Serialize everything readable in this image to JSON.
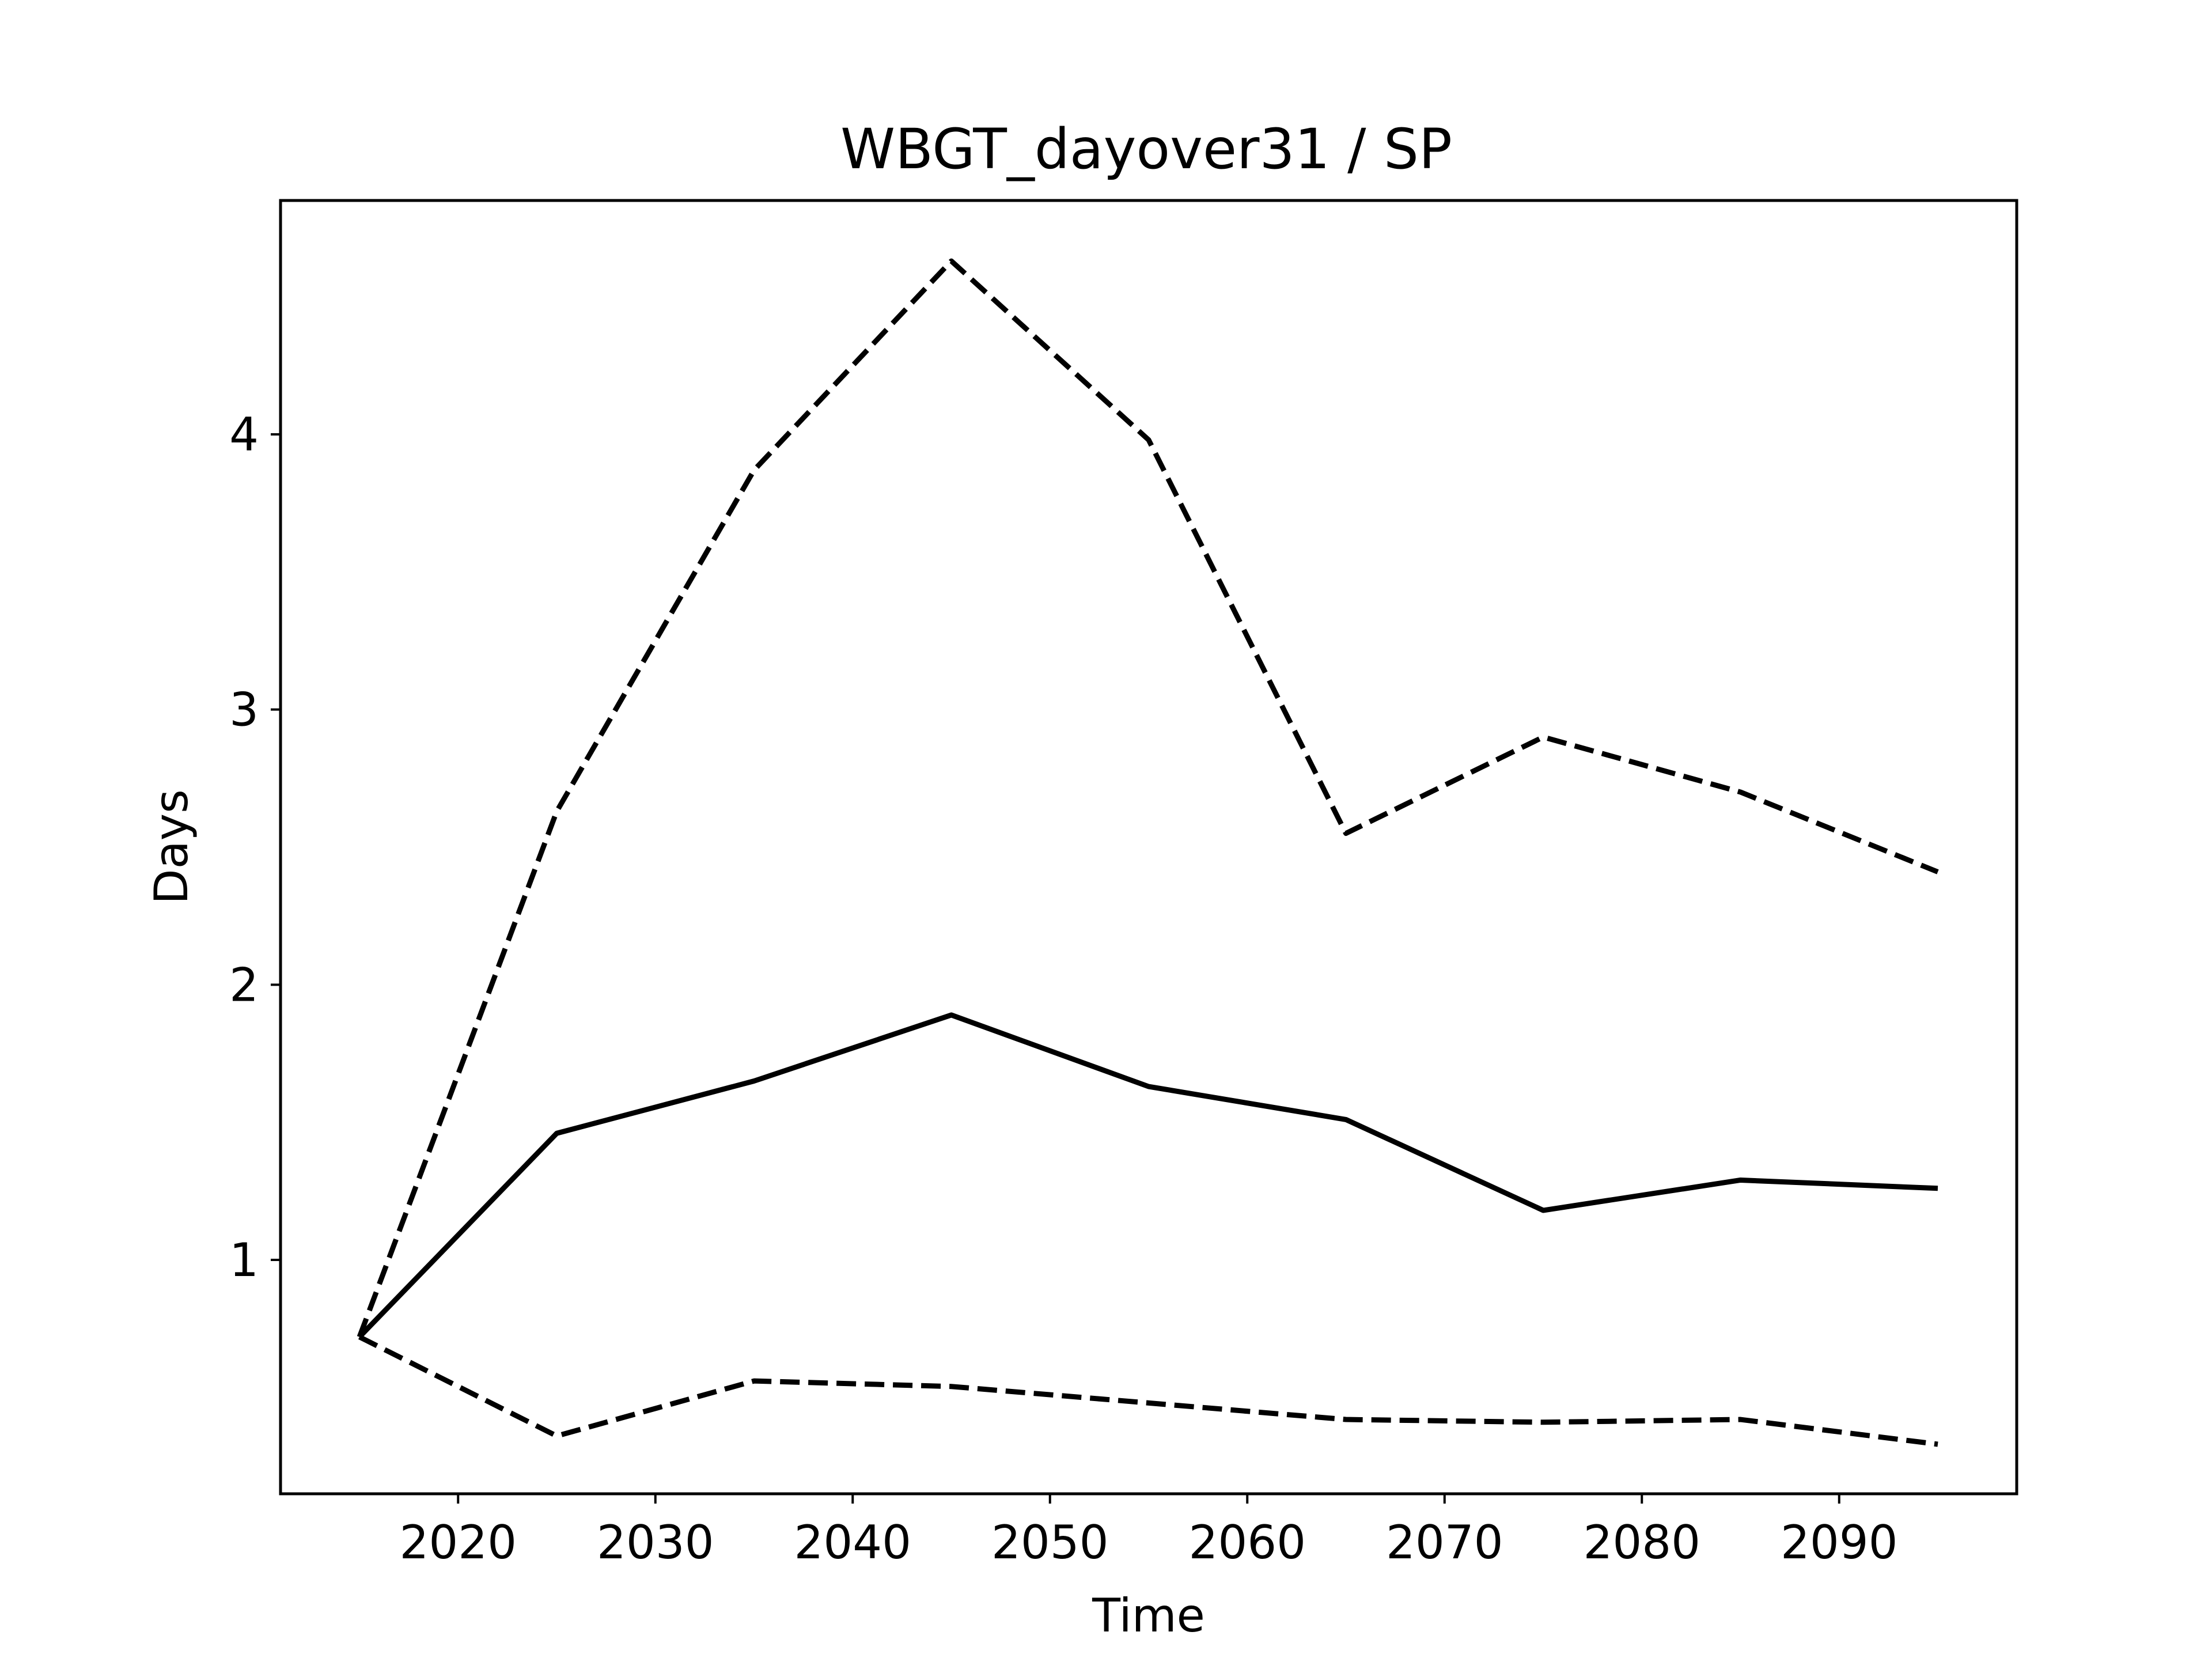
{
  "chart_data": {
    "type": "line",
    "title": "WBGT_dayover31 / SP",
    "xlabel": "Time",
    "ylabel": "Days",
    "xlim": [
      2011,
      2099
    ],
    "ylim": [
      0.15,
      4.85
    ],
    "xticks": [
      2020,
      2030,
      2040,
      2050,
      2060,
      2070,
      2080,
      2090
    ],
    "xtick_labels": [
      "2020",
      "2030",
      "2040",
      "2050",
      "2060",
      "2070",
      "2080",
      "2090"
    ],
    "yticks": [
      1,
      2,
      3,
      4
    ],
    "ytick_labels": [
      "1",
      "2",
      "3",
      "4"
    ],
    "grid": false,
    "x": [
      2015,
      2025,
      2035,
      2045,
      2055,
      2065,
      2075,
      2085,
      2095
    ],
    "series": [
      {
        "style": "dashed",
        "color": "#000000",
        "values": [
          0.72,
          2.63,
          3.87,
          4.63,
          3.98,
          2.55,
          2.9,
          2.7,
          2.41
        ]
      },
      {
        "style": "solid",
        "color": "#000000",
        "values": [
          0.72,
          1.46,
          1.65,
          1.89,
          1.63,
          1.51,
          1.18,
          1.29,
          1.26
        ]
      },
      {
        "style": "dashed",
        "color": "#000000",
        "values": [
          0.72,
          0.36,
          0.56,
          0.54,
          0.48,
          0.42,
          0.41,
          0.42,
          0.33
        ]
      }
    ]
  }
}
